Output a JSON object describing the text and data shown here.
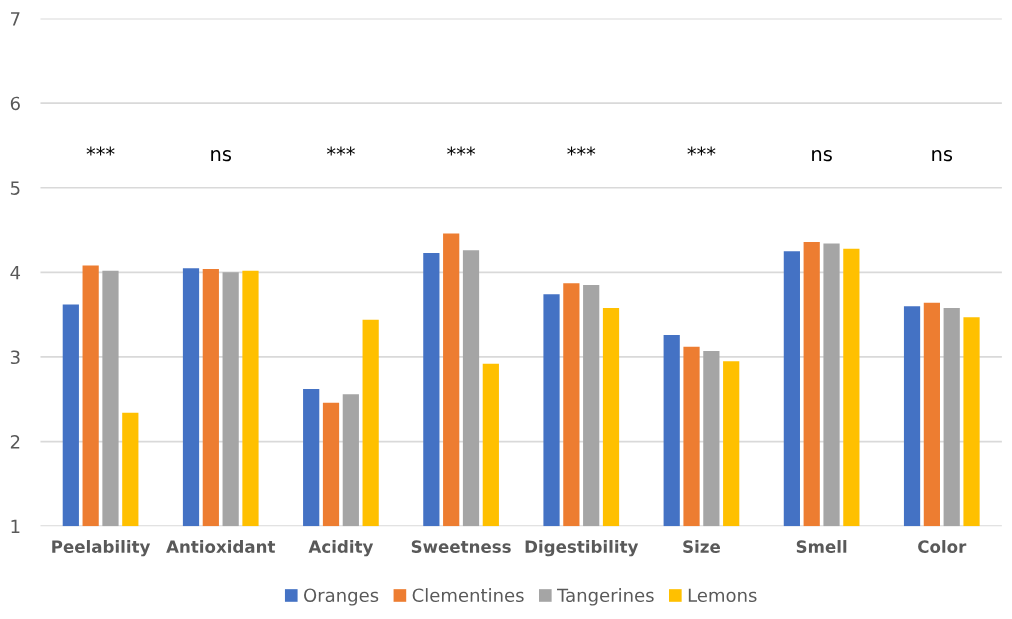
{
  "chart_data": {
    "type": "bar",
    "categories": [
      "Peelability",
      "Antioxidant",
      "Acidity",
      "Sweetness",
      "Digestibility",
      "Size",
      "Smell",
      "Color"
    ],
    "series": [
      {
        "name": "Oranges",
        "color": "#4472c4",
        "values": [
          3.62,
          4.05,
          2.62,
          4.23,
          3.74,
          3.26,
          4.25,
          3.6
        ]
      },
      {
        "name": "Clementines",
        "color": "#ed7d31",
        "values": [
          4.08,
          4.04,
          2.46,
          4.46,
          3.87,
          3.12,
          4.36,
          3.64
        ]
      },
      {
        "name": "Tangerines",
        "color": "#a5a5a5",
        "values": [
          4.02,
          4.0,
          2.56,
          4.26,
          3.85,
          3.07,
          4.34,
          3.58
        ]
      },
      {
        "name": "Lemons",
        "color": "#ffc000",
        "values": [
          2.34,
          4.02,
          3.44,
          2.92,
          3.58,
          2.95,
          4.28,
          3.47
        ]
      }
    ],
    "ylim": [
      1,
      7
    ],
    "yticks": [
      1,
      2,
      3,
      4,
      5,
      6,
      7
    ],
    "grid": "y",
    "legend": "bottom",
    "annotations": [
      "***",
      "ns",
      "***",
      "***",
      "***",
      "***",
      "ns",
      "ns"
    ]
  }
}
